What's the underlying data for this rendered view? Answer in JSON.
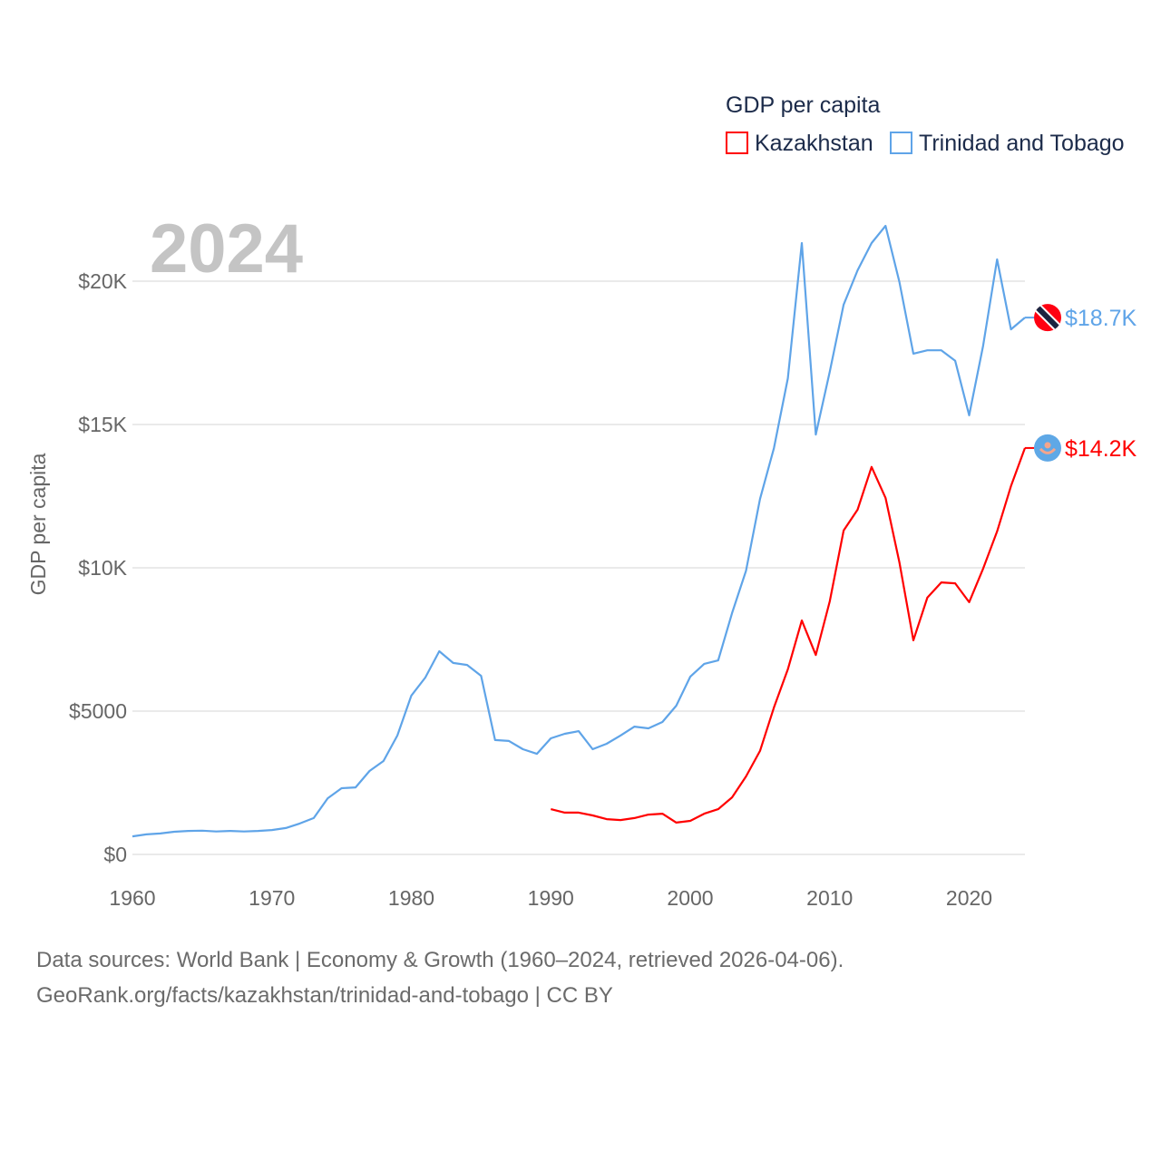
{
  "chart_data": {
    "type": "line",
    "title": "GDP per capita",
    "legend_title": "GDP per capita",
    "legend_position": "top-right",
    "ylabel": "GDP per capita",
    "xlabel": "",
    "year_watermark": "2024",
    "xlim": [
      1960,
      2024
    ],
    "ylim": [
      0,
      22500
    ],
    "x_ticks": [
      1960,
      1970,
      1980,
      1990,
      2000,
      2010,
      2020
    ],
    "x_tick_labels": [
      "1960",
      "1970",
      "1980",
      "1990",
      "2000",
      "2010",
      "2020"
    ],
    "y_ticks": [
      0,
      5000,
      10000,
      15000,
      20000
    ],
    "y_tick_labels": [
      "$0",
      "$5000",
      "$10K",
      "$15K",
      "$20K"
    ],
    "grid": true,
    "series": [
      {
        "name": "Kazakhstan",
        "color": "#ff0000",
        "flag": "kazakhstan-flag",
        "end_label": "$14.2K",
        "start_year": 1990,
        "values": [
          1580,
          1460,
          1460,
          1360,
          1230,
          1200,
          1270,
          1390,
          1420,
          1110,
          1170,
          1420,
          1580,
          1990,
          2720,
          3610,
          5130,
          6460,
          8160,
          6960,
          8830,
          11300,
          12030,
          13520,
          12440,
          10190,
          7470,
          8960,
          9490,
          9460,
          8800,
          9970,
          11270,
          12850,
          14180
        ]
      },
      {
        "name": "Trinidad and Tobago",
        "color": "#5fa4e8",
        "flag": "trinidad-and-tobago-flag",
        "end_label": "$18.7K",
        "start_year": 1960,
        "values": [
          630,
          700,
          730,
          790,
          820,
          830,
          800,
          820,
          800,
          820,
          850,
          920,
          1080,
          1270,
          1960,
          2310,
          2340,
          2910,
          3260,
          4150,
          5540,
          6170,
          7090,
          6680,
          6610,
          6230,
          3990,
          3960,
          3670,
          3510,
          4050,
          4210,
          4300,
          3670,
          3860,
          4150,
          4460,
          4400,
          4620,
          5190,
          6200,
          6650,
          6770,
          8420,
          9900,
          12400,
          14180,
          16610,
          21330,
          14650,
          16840,
          19180,
          20380,
          21330,
          21930,
          19970,
          17470,
          17590,
          17590,
          17220,
          15320,
          17750,
          20760,
          18320,
          18730
        ]
      }
    ]
  },
  "footer": {
    "line1": "Data sources: World Bank | Economy & Growth (1960–2024, retrieved 2026-04-06).",
    "line2": "GeoRank.org/facts/kazakhstan/trinidad-and-tobago | CC BY"
  }
}
